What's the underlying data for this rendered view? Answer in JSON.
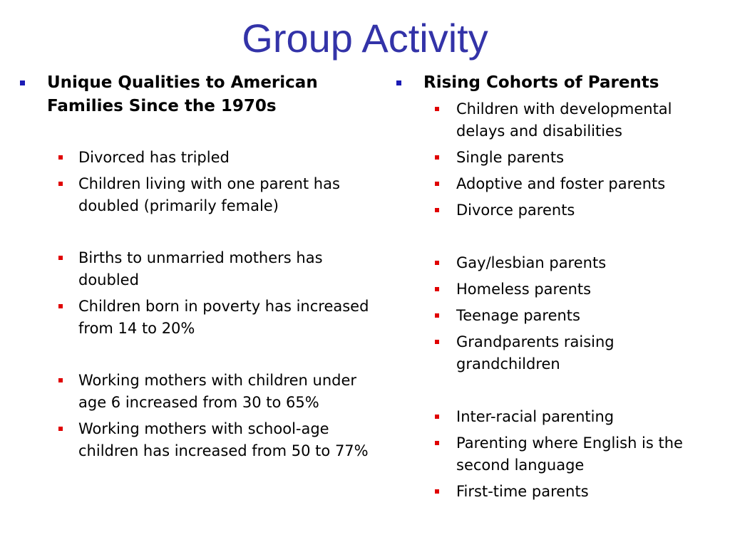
{
  "slide": {
    "title": "Group Activity"
  },
  "left": {
    "heading": "Unique Qualities to American Families Since the 1970s",
    "groups": [
      [
        "Divorced has tripled",
        "Children living with one parent has doubled (primarily female)"
      ],
      [
        "Births to unmarried mothers has doubled",
        "Children born in poverty has increased from 14 to 20%"
      ],
      [
        "Working mothers with children under age 6 increased from 30 to 65%",
        "Working mothers with school-age children has increased from 50 to 77%"
      ]
    ]
  },
  "right": {
    "heading": "Rising Cohorts of Parents",
    "groups": [
      [
        "Children with developmental delays and disabilities",
        "Single parents",
        "Adoptive and foster parents",
        "Divorce parents"
      ],
      [
        "Gay/lesbian parents",
        "Homeless parents",
        "Teenage parents",
        "Grandparents raising grandchildren"
      ],
      [
        "Inter-racial parenting",
        "Parenting where English is the second language",
        "First-time parents"
      ]
    ]
  },
  "colors": {
    "title": "#3333a8",
    "heading_bullet": "#1b1bb5",
    "item_bullet": "#e00000"
  }
}
